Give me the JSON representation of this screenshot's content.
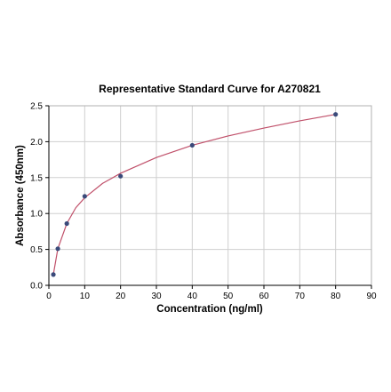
{
  "chart_data": {
    "type": "scatter",
    "title": "Representative Standard Curve for A270821",
    "xlabel": "Concentration (ng/ml)",
    "ylabel": "Absorbance (450nm)",
    "xlim": [
      0,
      90
    ],
    "ylim": [
      0,
      2.5
    ],
    "xticks": [
      0,
      10,
      20,
      30,
      40,
      50,
      60,
      70,
      80,
      90
    ],
    "yticks": [
      0.0,
      0.5,
      1.0,
      1.5,
      2.0,
      2.5
    ],
    "xtick_labels": [
      "0",
      "10",
      "20",
      "30",
      "40",
      "50",
      "60",
      "70",
      "80",
      "90"
    ],
    "ytick_labels": [
      "0.0",
      "0.5",
      "1.0",
      "1.5",
      "2.0",
      "2.5"
    ],
    "grid": true,
    "series": [
      {
        "type": "scatter",
        "color": "#3a4a7a",
        "x": [
          1.25,
          2.5,
          5,
          10,
          20,
          40,
          80
        ],
        "y": [
          0.15,
          0.51,
          0.86,
          1.24,
          1.52,
          1.95,
          2.38
        ]
      },
      {
        "type": "line",
        "color": "#c0506a",
        "fit": "smooth curve through standards",
        "x": [
          1.25,
          2.5,
          5,
          7.5,
          10,
          15,
          20,
          30,
          40,
          50,
          60,
          70,
          80
        ],
        "y": [
          0.15,
          0.51,
          0.86,
          1.08,
          1.22,
          1.42,
          1.56,
          1.78,
          1.95,
          2.08,
          2.19,
          2.29,
          2.38
        ]
      }
    ]
  }
}
